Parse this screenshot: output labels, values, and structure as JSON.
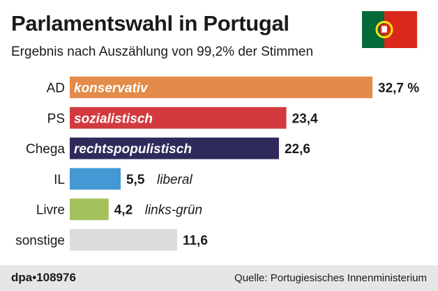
{
  "header": {
    "title": "Parlamentswahl in Portugal",
    "subtitle": "Ergebnis nach Auszählung von 99,2% der Stimmen"
  },
  "footer": {
    "brand": "dpa•108976",
    "source": "Quelle: Portugiesisches Innenministerium"
  },
  "colors": {
    "flag_green": "#046a38",
    "flag_red": "#da291c",
    "flag_yellow": "#ffe900"
  },
  "chart_data": {
    "type": "bar",
    "orientation": "horizontal",
    "categories": [
      "AD",
      "PS",
      "Chega",
      "IL",
      "Livre",
      "sonstige"
    ],
    "values": [
      32.7,
      23.4,
      22.6,
      5.5,
      4.2,
      11.6
    ],
    "value_labels": [
      "32,7 %",
      "23,4",
      "22,6",
      "5,5",
      "4,2",
      "11,6"
    ],
    "descriptors": [
      "konservativ",
      "sozialistisch",
      "rechtspopulistisch",
      "liberal",
      "links-grün",
      ""
    ],
    "colors": [
      "#e38b48",
      "#d23a3f",
      "#2e2a5c",
      "#4499d4",
      "#a3c15c",
      "#dcdcdc"
    ],
    "xlim": [
      0,
      32.7
    ]
  }
}
